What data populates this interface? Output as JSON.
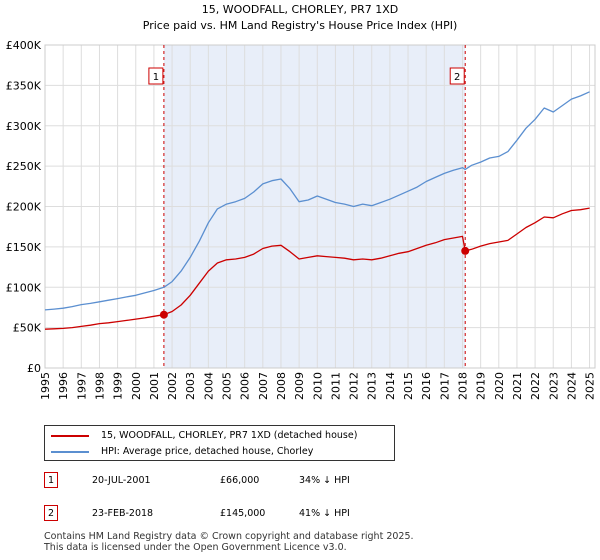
{
  "chart_data": {
    "type": "line",
    "title": "15, WOODFALL, CHORLEY, PR7 1XD",
    "subtitle": "Price paid vs. HM Land Registry's House Price Index (HPI)",
    "xlim": [
      1995.0,
      2025.3
    ],
    "ylim": [
      0,
      400000
    ],
    "y_ticks": [
      0,
      50000,
      100000,
      150000,
      200000,
      250000,
      300000,
      350000,
      400000
    ],
    "y_tick_labels": [
      "£0",
      "£50K",
      "£100K",
      "£150K",
      "£200K",
      "£250K",
      "£300K",
      "£350K",
      "£400K"
    ],
    "x_ticks": [
      1995,
      1996,
      1997,
      1998,
      1999,
      2000,
      2001,
      2002,
      2003,
      2004,
      2005,
      2006,
      2007,
      2008,
      2009,
      2010,
      2011,
      2012,
      2013,
      2014,
      2015,
      2016,
      2017,
      2018,
      2019,
      2020,
      2021,
      2022,
      2023,
      2024,
      2025
    ],
    "x_tick_labels": [
      "1995",
      "1996",
      "1997",
      "1998",
      "1999",
      "2000",
      "2001",
      "2002",
      "2003",
      "2004",
      "2005",
      "2006",
      "2007",
      "2008",
      "2009",
      "2010",
      "2011",
      "2012",
      "2013",
      "2014",
      "2015",
      "2016",
      "2017",
      "2018",
      "2019",
      "2020",
      "2021",
      "2022",
      "2023",
      "2024",
      "2025"
    ],
    "grid": true,
    "shaded_region": [
      2001.55,
      2018.15
    ],
    "series": [
      {
        "name": "15, WOODFALL, CHORLEY, PR7 1XD (detached house)",
        "color": "#cc0000",
        "x": [
          1995.0,
          1995.5,
          1996.0,
          1996.5,
          1997.0,
          1997.5,
          1998.0,
          1998.5,
          1999.0,
          1999.5,
          2000.0,
          2000.5,
          2001.0,
          2001.55,
          2002.0,
          2002.5,
          2003.0,
          2003.5,
          2004.0,
          2004.5,
          2005.0,
          2005.5,
          2006.0,
          2006.5,
          2007.0,
          2007.5,
          2008.0,
          2008.5,
          2009.0,
          2009.5,
          2010.0,
          2010.5,
          2011.0,
          2011.5,
          2012.0,
          2012.5,
          2013.0,
          2013.5,
          2014.0,
          2014.5,
          2015.0,
          2015.5,
          2016.0,
          2016.5,
          2017.0,
          2017.5,
          2018.0,
          2018.15,
          2018.5,
          2019.0,
          2019.5,
          2020.0,
          2020.5,
          2021.0,
          2021.5,
          2022.0,
          2022.5,
          2023.0,
          2023.5,
          2024.0,
          2024.5,
          2025.0
        ],
        "values": [
          48000,
          48500,
          49000,
          50000,
          51500,
          53000,
          55000,
          56000,
          57500,
          59000,
          60500,
          62000,
          64000,
          66000,
          70000,
          78000,
          90000,
          105000,
          120000,
          130000,
          134000,
          135000,
          137000,
          141000,
          148000,
          151000,
          152000,
          144000,
          135000,
          137000,
          139000,
          138000,
          137000,
          136000,
          134000,
          135000,
          134000,
          136000,
          139000,
          142000,
          144000,
          148000,
          152000,
          155000,
          159000,
          161000,
          163000,
          145000,
          147000,
          151000,
          154000,
          156000,
          158000,
          166000,
          174000,
          180000,
          187000,
          186000,
          191000,
          195000,
          196000,
          198000
        ]
      },
      {
        "name": "HPI: Average price, detached house, Chorley",
        "color": "#5b8fd0",
        "x": [
          1995.0,
          1995.5,
          1996.0,
          1996.5,
          1997.0,
          1997.5,
          1998.0,
          1998.5,
          1999.0,
          1999.5,
          2000.0,
          2000.5,
          2001.0,
          2001.55,
          2002.0,
          2002.5,
          2003.0,
          2003.5,
          2004.0,
          2004.5,
          2005.0,
          2005.5,
          2006.0,
          2006.5,
          2007.0,
          2007.5,
          2008.0,
          2008.5,
          2009.0,
          2009.5,
          2010.0,
          2010.5,
          2011.0,
          2011.5,
          2012.0,
          2012.5,
          2013.0,
          2013.5,
          2014.0,
          2014.5,
          2015.0,
          2015.5,
          2016.0,
          2016.5,
          2017.0,
          2017.5,
          2018.0,
          2018.15,
          2018.5,
          2019.0,
          2019.5,
          2020.0,
          2020.5,
          2021.0,
          2021.5,
          2022.0,
          2022.5,
          2023.0,
          2023.5,
          2024.0,
          2024.5,
          2025.0
        ],
        "values": [
          72000,
          73000,
          74000,
          76000,
          78500,
          80000,
          82000,
          84000,
          86000,
          88000,
          90000,
          93000,
          96000,
          100000,
          107000,
          120000,
          137000,
          157000,
          180000,
          197000,
          203000,
          206000,
          210000,
          218000,
          228000,
          232000,
          234000,
          222000,
          206000,
          208000,
          213000,
          209000,
          205000,
          203000,
          200000,
          203000,
          201000,
          205000,
          209000,
          214000,
          219000,
          224000,
          231000,
          236000,
          241000,
          245000,
          248000,
          246000,
          251000,
          255000,
          260000,
          262000,
          268000,
          282000,
          297000,
          308000,
          322000,
          317000,
          325000,
          333000,
          337000,
          342000
        ]
      }
    ],
    "annotations": [
      {
        "label": "1",
        "x": 2001.55,
        "y": 66000,
        "date": "20-JUL-2001",
        "price": "£66,000",
        "hpi": "34% ↓ HPI"
      },
      {
        "label": "2",
        "x": 2018.15,
        "y": 145000,
        "date": "23-FEB-2018",
        "price": "£145,000",
        "hpi": "41% ↓ HPI"
      }
    ]
  },
  "colors": {
    "property_line": "#cc0000",
    "hpi_line": "#5b8fd0",
    "shade": "#e8eef9",
    "grid": "#dddddd"
  },
  "footer": {
    "line1": "Contains HM Land Registry data © Crown copyright and database right 2025.",
    "line2": "This data is licensed under the Open Government Licence v3.0."
  }
}
